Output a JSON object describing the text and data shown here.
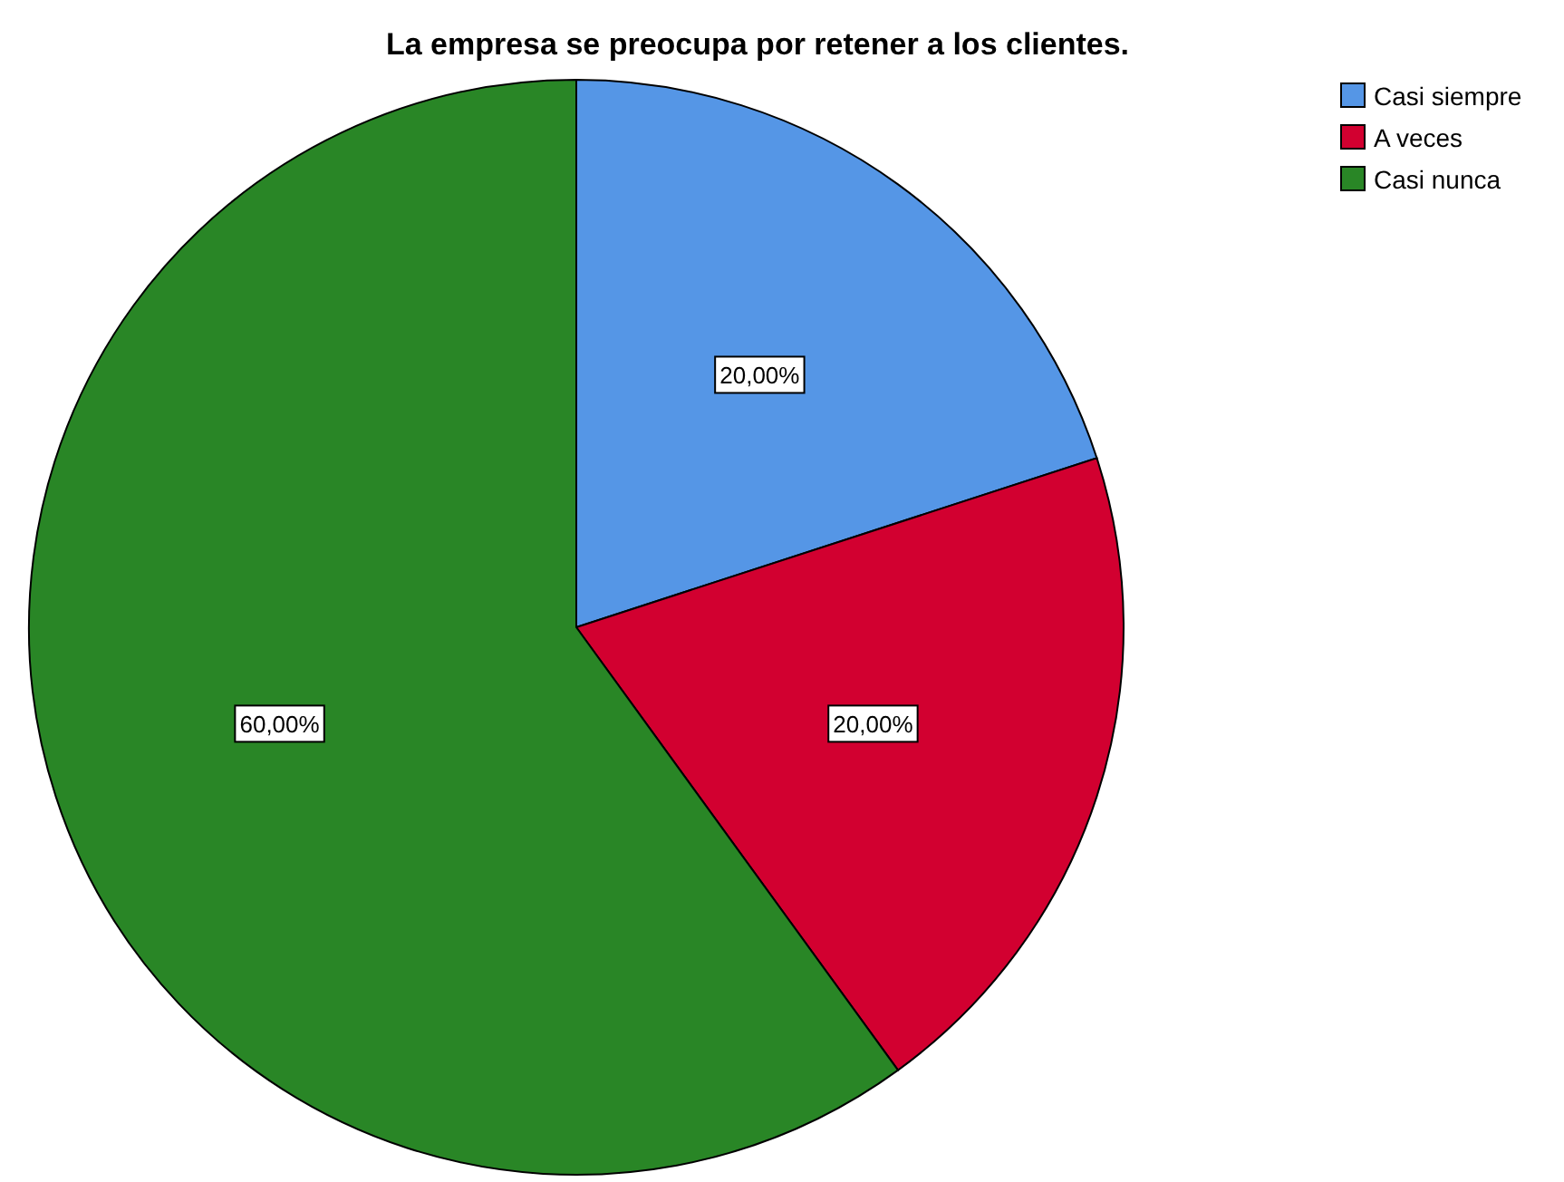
{
  "chart_data": {
    "type": "pie",
    "title": "La empresa se preocupa por retener a los clientes.",
    "categories": [
      "Casi siempre",
      "A veces",
      "Casi nunca"
    ],
    "values": [
      20,
      20,
      60
    ],
    "colors": [
      "#5596e6",
      "#d20030",
      "#298626"
    ],
    "value_labels": [
      "20,00%",
      "20,00%",
      "60,00%"
    ],
    "legend": "top right"
  }
}
